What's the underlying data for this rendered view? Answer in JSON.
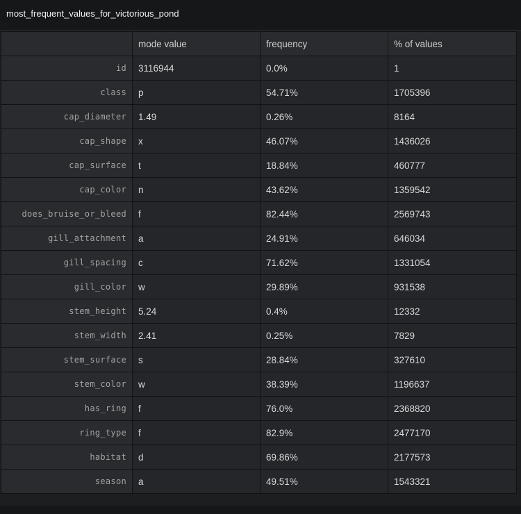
{
  "panel": {
    "title": "most_frequent_values_for_victorious_pond"
  },
  "table": {
    "columns": [
      "mode value",
      "frequency",
      "% of values"
    ],
    "rows": [
      {
        "name": "id",
        "mode": "3116944",
        "frequency": "0.0%",
        "pct": "1"
      },
      {
        "name": "class",
        "mode": "p",
        "frequency": "54.71%",
        "pct": "1705396"
      },
      {
        "name": "cap_diameter",
        "mode": "1.49",
        "frequency": "0.26%",
        "pct": "8164"
      },
      {
        "name": "cap_shape",
        "mode": "x",
        "frequency": "46.07%",
        "pct": "1436026"
      },
      {
        "name": "cap_surface",
        "mode": "t",
        "frequency": "18.84%",
        "pct": "460777"
      },
      {
        "name": "cap_color",
        "mode": "n",
        "frequency": "43.62%",
        "pct": "1359542"
      },
      {
        "name": "does_bruise_or_bleed",
        "mode": "f",
        "frequency": "82.44%",
        "pct": "2569743"
      },
      {
        "name": "gill_attachment",
        "mode": "a",
        "frequency": "24.91%",
        "pct": "646034"
      },
      {
        "name": "gill_spacing",
        "mode": "c",
        "frequency": "71.62%",
        "pct": "1331054"
      },
      {
        "name": "gill_color",
        "mode": "w",
        "frequency": "29.89%",
        "pct": "931538"
      },
      {
        "name": "stem_height",
        "mode": "5.24",
        "frequency": "0.4%",
        "pct": "12332"
      },
      {
        "name": "stem_width",
        "mode": "2.41",
        "frequency": "0.25%",
        "pct": "7829"
      },
      {
        "name": "stem_surface",
        "mode": "s",
        "frequency": "28.84%",
        "pct": "327610"
      },
      {
        "name": "stem_color",
        "mode": "w",
        "frequency": "38.39%",
        "pct": "1196637"
      },
      {
        "name": "has_ring",
        "mode": "f",
        "frequency": "76.0%",
        "pct": "2368820"
      },
      {
        "name": "ring_type",
        "mode": "f",
        "frequency": "82.9%",
        "pct": "2477170"
      },
      {
        "name": "habitat",
        "mode": "d",
        "frequency": "69.86%",
        "pct": "2177573"
      },
      {
        "name": "season",
        "mode": "a",
        "frequency": "49.51%",
        "pct": "1543321"
      }
    ]
  },
  "colors": {
    "background": "#1d1e20",
    "title_bar": "#161719",
    "header_cell": "#2a2b2e",
    "data_cell": "#25262a",
    "text": "#d8d8d8"
  }
}
